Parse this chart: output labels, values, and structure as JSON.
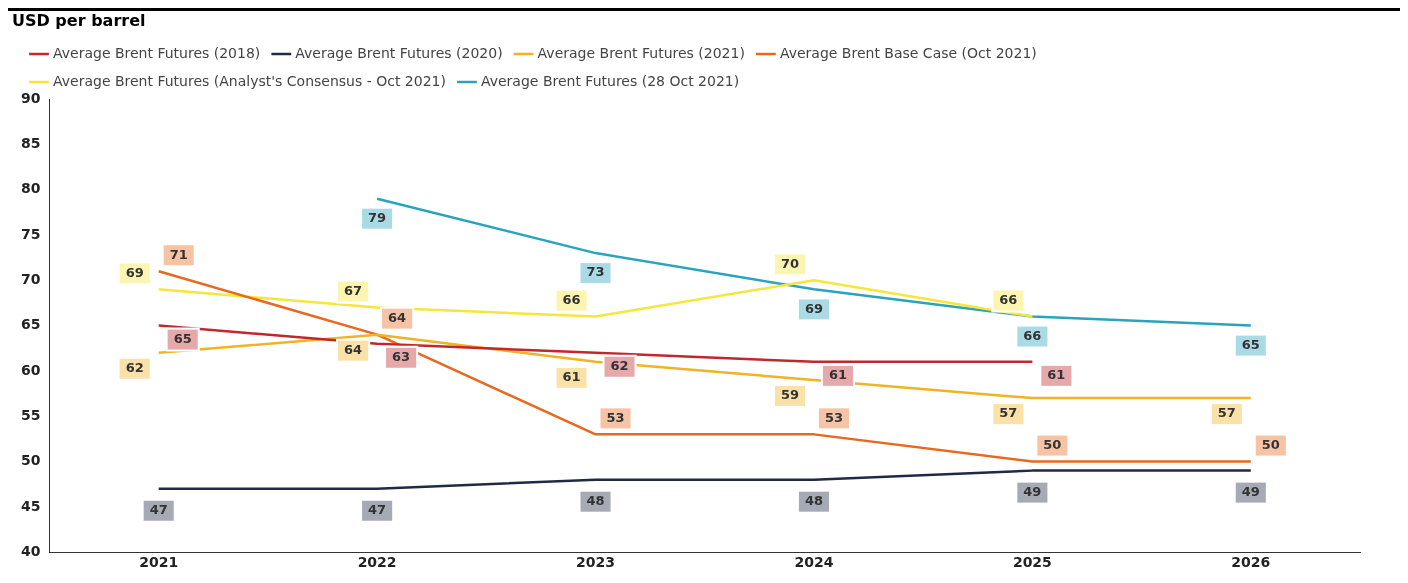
{
  "chart_data": {
    "type": "line",
    "ylabel": "USD per barrel",
    "categories": [
      "2021",
      "2022",
      "2023",
      "2024",
      "2025",
      "2026"
    ],
    "series": [
      {
        "name": "Average Brent Futures (2018)",
        "color": "#c0282d",
        "values": [
          65,
          63,
          62,
          61,
          61,
          null
        ]
      },
      {
        "name": "Average Brent Futures (2020)",
        "color": "#1f2a44",
        "values": [
          47,
          47,
          48,
          48,
          49,
          49
        ]
      },
      {
        "name": "Average Brent Futures (2021)",
        "color": "#f0b323",
        "values": [
          62,
          64,
          61,
          59,
          57,
          57
        ]
      },
      {
        "name": "Average Brent Base Case (Oct 2021)",
        "color": "#e8681f",
        "values": [
          71,
          64,
          53,
          53,
          50,
          50
        ]
      },
      {
        "name": "Average Brent Futures (Analyst's Consensus - Oct 2021)",
        "color": "#f5e63c",
        "values": [
          69,
          67,
          66,
          70,
          66,
          null
        ]
      },
      {
        "name": "Average Brent Futures (28 Oct 2021)",
        "color": "#2aa3bd",
        "values": [
          null,
          79,
          73,
          69,
          66,
          65
        ]
      }
    ],
    "ylim": [
      40,
      90
    ],
    "yticks": [
      40,
      45,
      50,
      55,
      60,
      65,
      70,
      75,
      80,
      85,
      90
    ],
    "grid": false,
    "legend": "top",
    "marker": "none",
    "line_style": "solid",
    "data_labels": true
  }
}
